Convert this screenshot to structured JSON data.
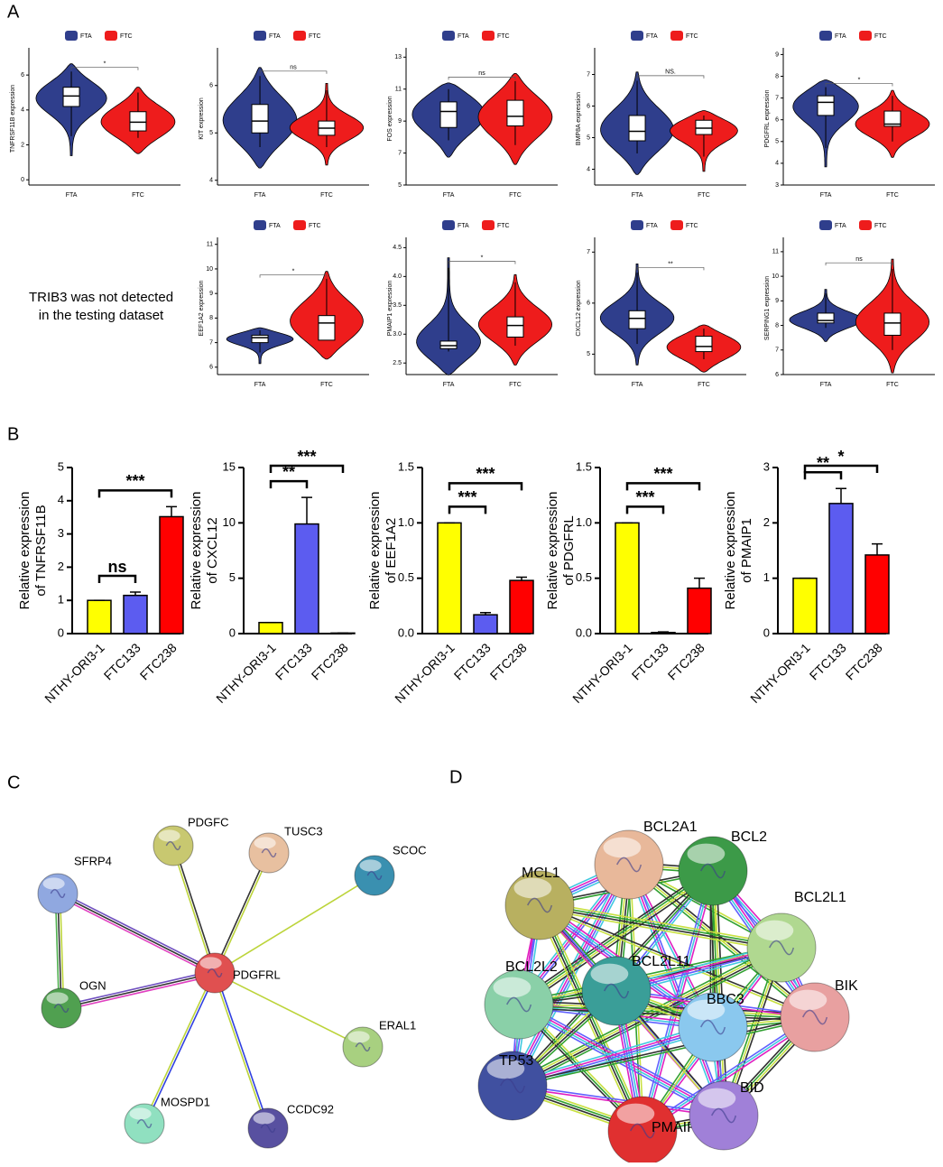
{
  "panel_labels": [
    "A",
    "B",
    "C",
    "D"
  ],
  "note": [
    "TRIB3 was not detected",
    "in the testing dataset"
  ],
  "chart_data": [
    {
      "type": "violin",
      "ylabel": "TNFRSF11B expression",
      "ylim": [
        -0.3,
        7.3
      ],
      "yticks": [
        0,
        2,
        4,
        6
      ],
      "significance": "*",
      "series": [
        {
          "name": "FTA",
          "color": "#2f3e8c",
          "box": [
            2.5,
            4.2,
            4.8,
            5.3,
            6.2
          ]
        },
        {
          "name": "FTC",
          "color": "#ee1c1c",
          "box": [
            2.4,
            2.8,
            3.3,
            3.9,
            5.0
          ]
        }
      ]
    },
    {
      "type": "violin",
      "ylabel": "KIT expression",
      "ylim": [
        3.9,
        6.7
      ],
      "yticks": [
        4,
        5,
        6
      ],
      "significance": "ns",
      "series": [
        {
          "name": "FTA",
          "color": "#2f3e8c",
          "box": [
            4.7,
            5.0,
            5.25,
            5.6,
            6.2
          ]
        },
        {
          "name": "FTC",
          "color": "#ee1c1c",
          "box": [
            4.7,
            4.95,
            5.1,
            5.25,
            5.9
          ]
        }
      ]
    },
    {
      "type": "violin",
      "ylabel": "FOS expression",
      "ylim": [
        5,
        13.3
      ],
      "yticks": [
        5,
        7,
        9,
        11,
        13
      ],
      "significance": "ns",
      "series": [
        {
          "name": "FTA",
          "color": "#2f3e8c",
          "box": [
            7.8,
            8.6,
            9.6,
            10.2,
            11
          ]
        },
        {
          "name": "FTC",
          "color": "#ee1c1c",
          "box": [
            7.5,
            8.7,
            9.3,
            10.3,
            11.5
          ]
        }
      ]
    },
    {
      "type": "violin",
      "ylabel": "BMP8A expression",
      "ylim": [
        3.5,
        7.7
      ],
      "yticks": [
        4,
        5,
        6,
        7
      ],
      "significance": "NS.",
      "series": [
        {
          "name": "FTA",
          "color": "#2f3e8c",
          "box": [
            4.5,
            4.9,
            5.2,
            5.7,
            6.8
          ]
        },
        {
          "name": "FTC",
          "color": "#ee1c1c",
          "box": [
            4.4,
            5.1,
            5.3,
            5.55,
            5.7
          ]
        }
      ]
    },
    {
      "type": "violin",
      "ylabel": "PDGFRL expression",
      "ylim": [
        3,
        9.1
      ],
      "yticks": [
        3,
        4,
        5,
        6,
        7,
        8,
        9
      ],
      "significance": "*",
      "series": [
        {
          "name": "FTA",
          "color": "#2f3e8c",
          "box": [
            4.7,
            6.2,
            6.8,
            7.1,
            7.5
          ]
        },
        {
          "name": "FTC",
          "color": "#ee1c1c",
          "box": [
            5.0,
            5.7,
            5.8,
            6.4,
            7.1
          ]
        }
      ]
    },
    {
      "type": "violin",
      "ylabel": "EEF1A2 expression",
      "ylim": [
        5.7,
        11.1
      ],
      "yticks": [
        6,
        7,
        8,
        9,
        10,
        11
      ],
      "significance": "*",
      "series": [
        {
          "name": "FTA",
          "color": "#2f3e8c",
          "box": [
            6.6,
            7.0,
            7.2,
            7.3,
            7.5
          ]
        },
        {
          "name": "FTC",
          "color": "#ee1c1c",
          "box": [
            7.1,
            7.1,
            7.8,
            8.1,
            9.6
          ]
        }
      ]
    },
    {
      "type": "violin",
      "ylabel": "PMAIP1 expression",
      "ylim": [
        2.3,
        4.6
      ],
      "yticks": [
        2.5,
        {
          "value": 3,
          "label": "3.0"
        },
        3.5,
        {
          "value": 4,
          "label": "4.0"
        },
        4.5
      ],
      "significance": "*",
      "series": [
        {
          "name": "FTA",
          "color": "#2f3e8c",
          "box": [
            2.7,
            2.75,
            2.8,
            2.88,
            4.15
          ]
        },
        {
          "name": "FTC",
          "color": "#ee1c1c",
          "box": [
            2.8,
            2.95,
            3.15,
            3.3,
            3.9
          ]
        }
      ]
    },
    {
      "type": "violin",
      "ylabel": "CXCL12 expression",
      "ylim": [
        4.6,
        7.2
      ],
      "yticks": [
        5,
        6,
        7
      ],
      "significance": "**",
      "series": [
        {
          "name": "FTA",
          "color": "#2f3e8c",
          "box": [
            5.2,
            5.5,
            5.7,
            5.85,
            6.6
          ]
        },
        {
          "name": "FTC",
          "color": "#ee1c1c",
          "box": [
            4.9,
            5.05,
            5.15,
            5.35,
            5.5
          ]
        }
      ]
    },
    {
      "type": "violin",
      "ylabel": "SERPING1 expression",
      "ylim": [
        6,
        11.4
      ],
      "yticks": [
        6,
        7,
        8,
        9,
        10,
        11
      ],
      "significance": "ns",
      "series": [
        {
          "name": "FTA",
          "color": "#2f3e8c",
          "box": [
            7.9,
            8.1,
            8.2,
            8.5,
            9.3
          ]
        },
        {
          "name": "FTC",
          "color": "#ee1c1c",
          "box": [
            7.0,
            7.6,
            8.1,
            8.5,
            10.3
          ]
        }
      ]
    },
    {
      "type": "bar",
      "ylabel": [
        "Relative expression",
        "of TNFRSF11B"
      ],
      "categories": [
        "NTHY-ORI3-1",
        "FTC133",
        "FTC238"
      ],
      "values": [
        1,
        1.15,
        3.52
      ],
      "errors": [
        0,
        0.1,
        0.3
      ],
      "colors": [
        "#ffff00",
        "#5c5cf0",
        "#ff0000"
      ],
      "ylim": [
        0,
        5
      ],
      "yticks": [
        0,
        1,
        2,
        3,
        4,
        5
      ],
      "significance": [
        "ns",
        "***"
      ]
    },
    {
      "type": "bar",
      "ylabel": [
        "Relative expression",
        "of CXCL12"
      ],
      "categories": [
        "NTHY-ORI3-1",
        "FTC133",
        "FTC238"
      ],
      "values": [
        1,
        9.9,
        0.05
      ],
      "errors": [
        0,
        2.4,
        0
      ],
      "colors": [
        "#ffff00",
        "#5c5cf0",
        "#ff0000"
      ],
      "ylim": [
        0,
        15
      ],
      "yticks": [
        0,
        5,
        10,
        15
      ],
      "significance": [
        "**",
        "***"
      ]
    },
    {
      "type": "bar",
      "ylabel": [
        "Relative expression",
        "of EEF1A2"
      ],
      "categories": [
        "NTHY-ORI3-1",
        "FTC133",
        "FTC238"
      ],
      "values": [
        1,
        0.17,
        0.48
      ],
      "errors": [
        0,
        0.02,
        0.03
      ],
      "colors": [
        "#ffff00",
        "#5c5cf0",
        "#ff0000"
      ],
      "ylim": [
        0,
        1.5
      ],
      "yticks": [
        {
          "value": 0,
          "label": "0.0"
        },
        0.5,
        {
          "value": 1,
          "label": "1.0"
        },
        1.5
      ],
      "significance": [
        "***",
        "***"
      ]
    },
    {
      "type": "bar",
      "ylabel": [
        "Relative expression",
        "of PDGFRL"
      ],
      "categories": [
        "NTHY-ORI3-1",
        "FTC133",
        "FTC238"
      ],
      "values": [
        1,
        0.01,
        0.41
      ],
      "errors": [
        0,
        0.005,
        0.09
      ],
      "colors": [
        "#ffff00",
        "#5c5cf0",
        "#ff0000"
      ],
      "ylim": [
        0,
        1.5
      ],
      "yticks": [
        {
          "value": 0,
          "label": "0.0"
        },
        0.5,
        {
          "value": 1,
          "label": "1.0"
        },
        1.5
      ],
      "significance": [
        "***",
        "***"
      ]
    },
    {
      "type": "bar",
      "ylabel": [
        "Relative expression",
        "of PMAIP1"
      ],
      "categories": [
        "NTHY-ORI3-1",
        "FTC133",
        "FTC238"
      ],
      "values": [
        1,
        2.35,
        1.42
      ],
      "errors": [
        0,
        0.27,
        0.2
      ],
      "colors": [
        "#ffff00",
        "#5c5cf0",
        "#ff0000"
      ],
      "ylim": [
        0,
        3
      ],
      "yticks": [
        0,
        1,
        2,
        3
      ],
      "significance": [
        "**",
        "*"
      ]
    }
  ],
  "networks": [
    {
      "nodes": [
        {
          "label": "PDGFRL",
          "color": "#e05050"
        },
        {
          "label": "PDGFC",
          "color": "#c8c870"
        },
        {
          "label": "TUSC3",
          "color": "#e8c0a0"
        },
        {
          "label": "SCOC",
          "color": "#3a90b0"
        },
        {
          "label": "SFRP4",
          "color": "#90a8e0"
        },
        {
          "label": "OGN",
          "color": "#50a050"
        },
        {
          "label": "ERAL1",
          "color": "#a8d080"
        },
        {
          "label": "MOSPD1",
          "color": "#90e0c0"
        },
        {
          "label": "CCDC92",
          "color": "#5850a0"
        }
      ]
    },
    {
      "nodes": [
        {
          "label": "BCL2A1",
          "color": "#e8b89a"
        },
        {
          "label": "BCL2",
          "color": "#3c9a48"
        },
        {
          "label": "MCL1",
          "color": "#b8b060"
        },
        {
          "label": "BCL2L1",
          "color": "#b0d890"
        },
        {
          "label": "BCL2L2",
          "color": "#8ad0a8"
        },
        {
          "label": "BCL2L11",
          "color": "#3a9e98"
        },
        {
          "label": "BBC3",
          "color": "#8ac8ee"
        },
        {
          "label": "BIK",
          "color": "#e8a0a0"
        },
        {
          "label": "TP53",
          "color": "#4050a0"
        },
        {
          "label": "PMAIP1",
          "color": "#e03030"
        },
        {
          "label": "BID",
          "color": "#a080d8"
        }
      ]
    }
  ]
}
